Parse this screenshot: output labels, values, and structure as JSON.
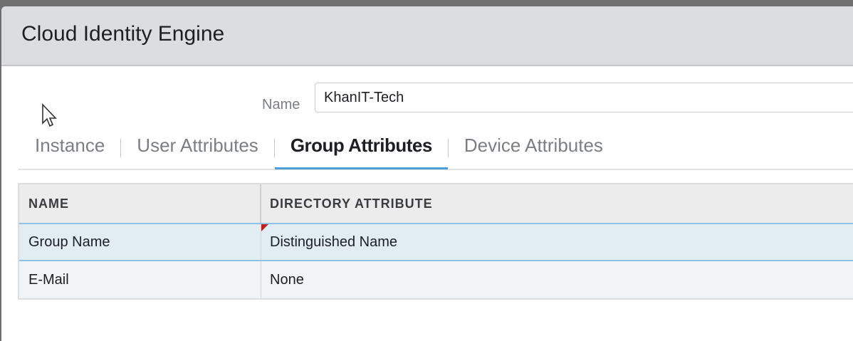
{
  "dialog": {
    "title": "Cloud Identity Engine"
  },
  "name_field": {
    "label": "Name",
    "value": "KhanIT-Tech"
  },
  "tabs": [
    {
      "label": "Instance",
      "active": false
    },
    {
      "label": "User Attributes",
      "active": false
    },
    {
      "label": "Group Attributes",
      "active": true
    },
    {
      "label": "Device Attributes",
      "active": false
    }
  ],
  "table": {
    "columns": [
      "NAME",
      "DIRECTORY ATTRIBUTE"
    ],
    "rows": [
      {
        "name": "Group Name",
        "attribute": "Distinguished Name",
        "selected": true,
        "modified": true
      },
      {
        "name": "E-Mail",
        "attribute": "None",
        "selected": false
      }
    ]
  },
  "colors": {
    "accent": "#4a9fd8",
    "modified_flag": "#c01d1d"
  }
}
